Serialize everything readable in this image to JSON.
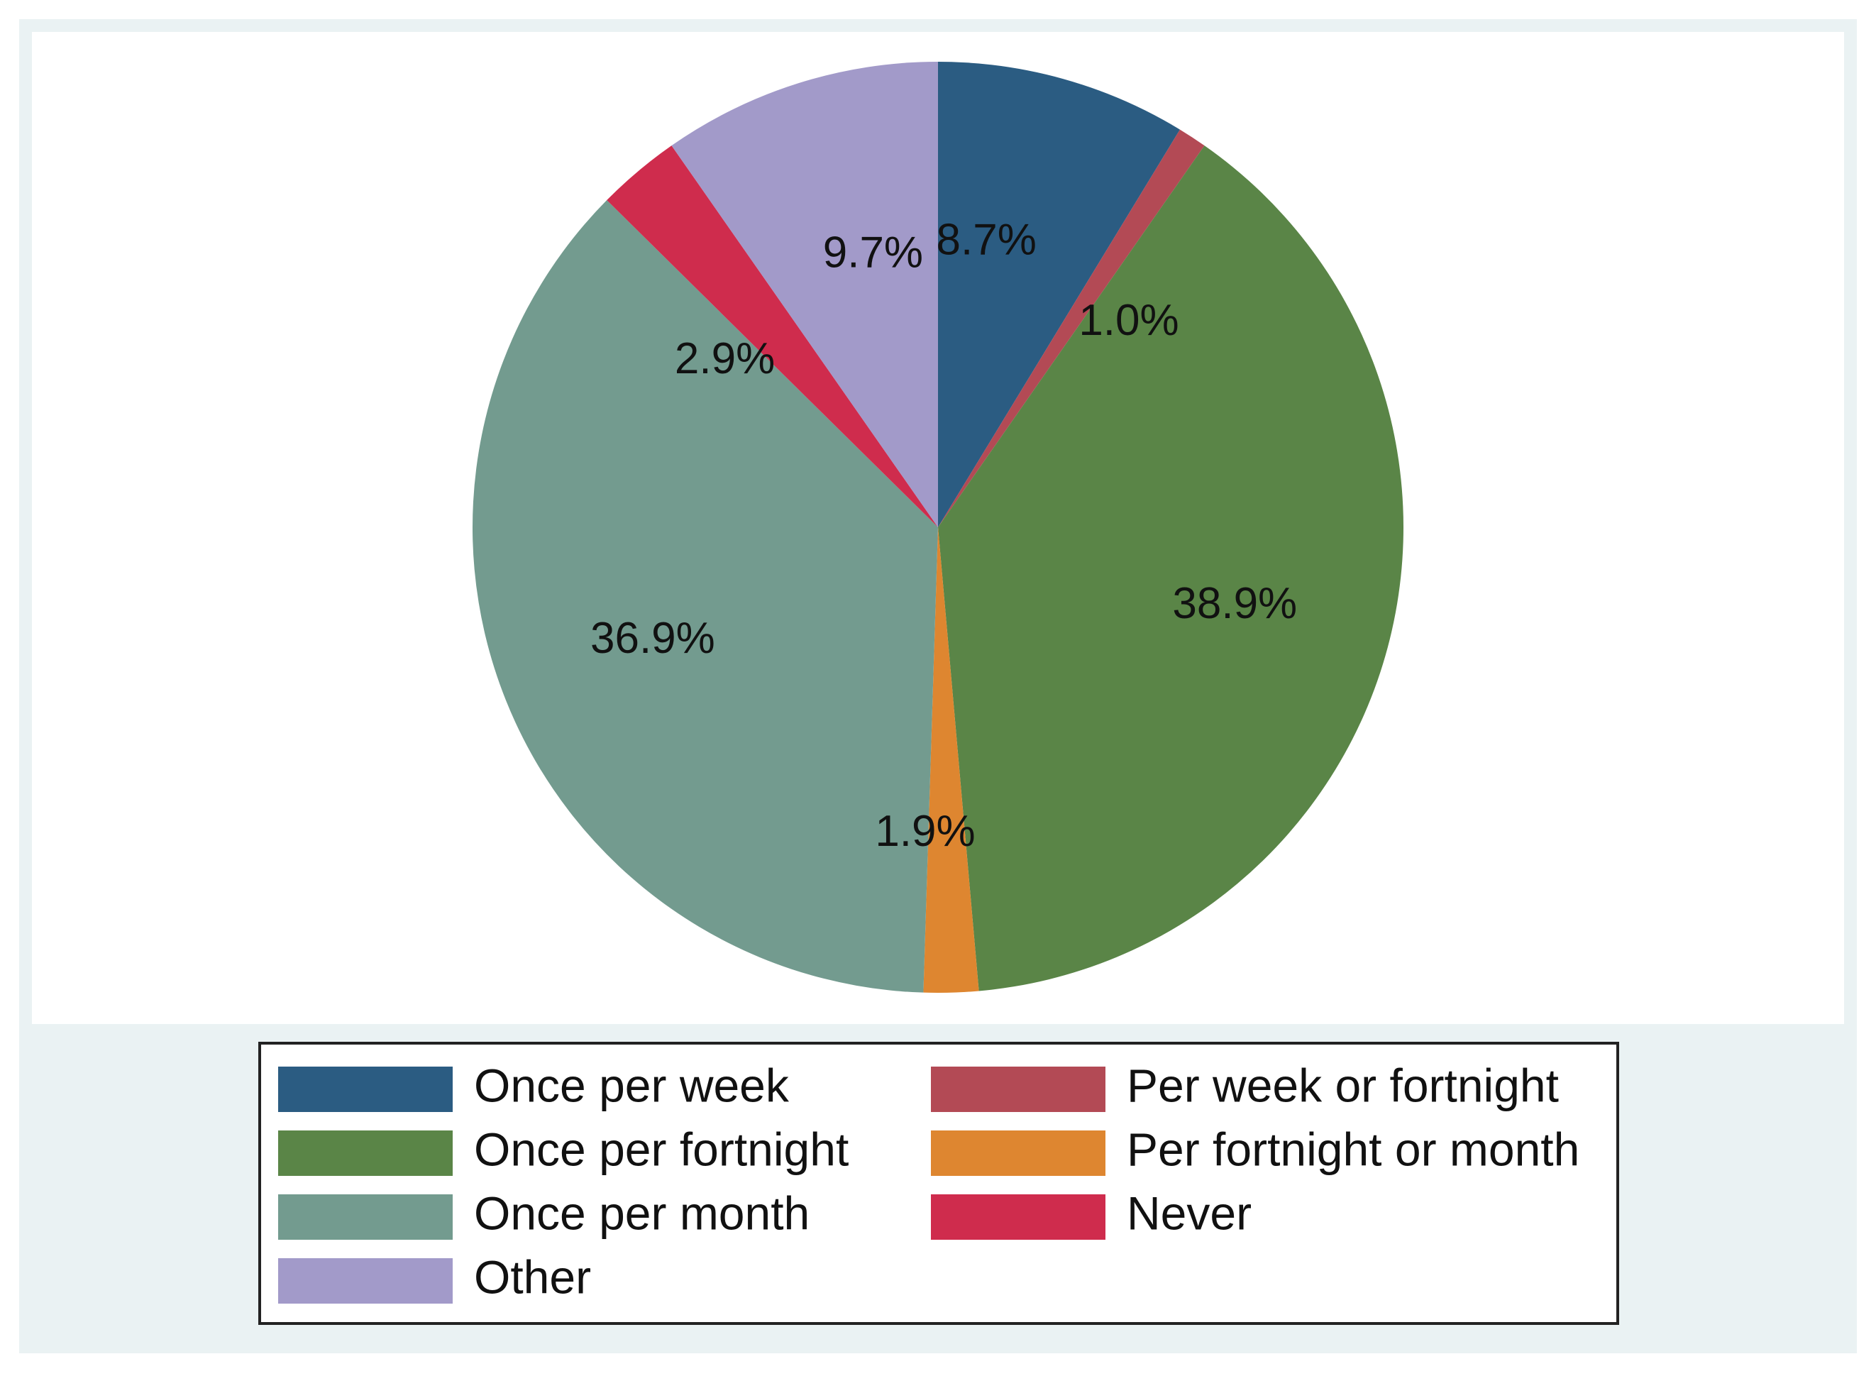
{
  "chart_data": {
    "type": "pie",
    "start_angle_deg": 0,
    "direction": "clockwise",
    "legend_placement": "bottom",
    "legend_columns": 2,
    "slices": [
      {
        "name": "Once per week",
        "value": 8.7,
        "label": "8.7%",
        "color": "#2b5c82"
      },
      {
        "name": "Per week or fortnight",
        "value": 1.0,
        "label": "1.0%",
        "color": "#b34a55"
      },
      {
        "name": "Once per fortnight",
        "value": 38.9,
        "label": "38.9%",
        "color": "#5a8547"
      },
      {
        "name": "Per fortnight or month",
        "value": 1.9,
        "label": "1.9%",
        "color": "#de8630"
      },
      {
        "name": "Once per month",
        "value": 36.9,
        "label": "36.9%",
        "color": "#739b8f"
      },
      {
        "name": "Never",
        "value": 2.9,
        "label": "2.9%",
        "color": "#cf2c4d"
      },
      {
        "name": "Other",
        "value": 9.7,
        "label": "9.7%",
        "color": "#a29ac9"
      }
    ],
    "legend_order": [
      "Once per week",
      "Per week or fortnight",
      "Once per fortnight",
      "Per fortnight or month",
      "Once per month",
      "Never",
      "Other"
    ]
  }
}
